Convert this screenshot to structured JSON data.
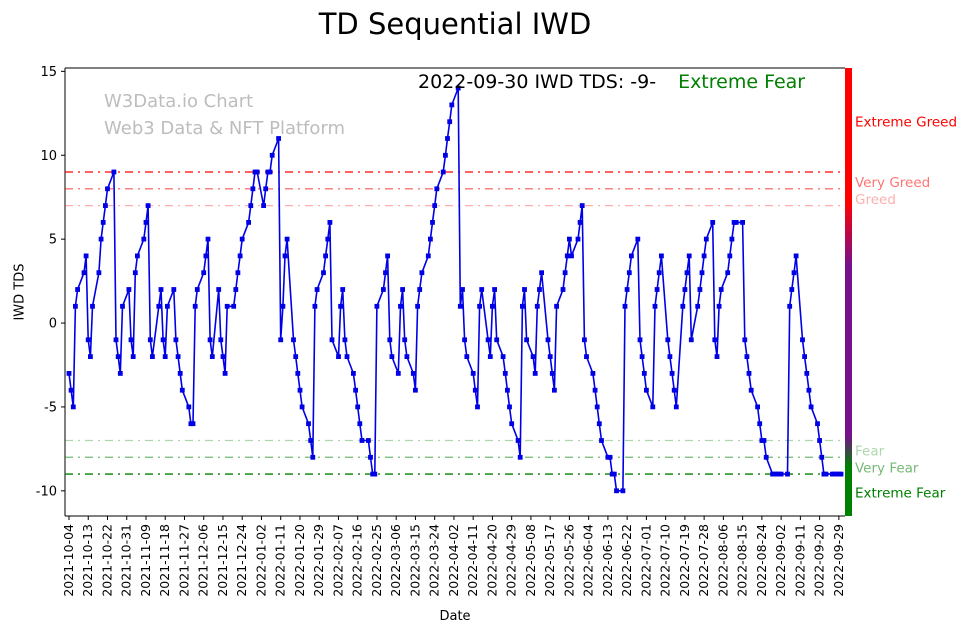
{
  "title": "TD Sequential IWD",
  "annotation": {
    "date_text": "2022-09-30 IWD TDS: -9-",
    "status": "Extreme Fear",
    "status_color": "#008000"
  },
  "watermark": {
    "line1": "W3Data.io Chart",
    "line2": "Web3 Data & NFT Platform"
  },
  "axes": {
    "xlabel": "Date",
    "ylabel": "IWD TDS",
    "yticks": [
      -10,
      -5,
      0,
      5,
      10,
      15
    ]
  },
  "chart_data": {
    "type": "line",
    "title": "TD Sequential IWD",
    "xlabel": "Date",
    "ylabel": "IWD TDS",
    "x_start_date": "2021-10-04",
    "x_end_date": "2022-09-30",
    "x_frequency": "weekdays",
    "ylim": [
      -11.5,
      15.2
    ],
    "grid": false,
    "x_tick_labels": [
      "2021-10-04",
      "2021-10-13",
      "2021-10-22",
      "2021-10-31",
      "2021-11-09",
      "2021-11-18",
      "2021-11-27",
      "2021-12-06",
      "2021-12-15",
      "2021-12-24",
      "2022-01-02",
      "2022-01-11",
      "2022-01-20",
      "2022-01-29",
      "2022-02-07",
      "2022-02-16",
      "2022-02-25",
      "2022-03-06",
      "2022-03-15",
      "2022-03-24",
      "2022-04-02",
      "2022-04-11",
      "2022-04-20",
      "2022-04-29",
      "2022-05-08",
      "2022-05-17",
      "2022-05-26",
      "2022-06-04",
      "2022-06-13",
      "2022-06-22",
      "2022-07-01",
      "2022-07-10",
      "2022-07-19",
      "2022-07-28",
      "2022-08-06",
      "2022-08-15",
      "2022-08-24",
      "2022-09-02",
      "2022-09-11",
      "2022-09-20",
      "2022-09-29"
    ],
    "zones": [
      {
        "value": 9,
        "label": "Extreme Greed",
        "color": "#ff0000",
        "opacity": 1.0,
        "label_at": 12.0
      },
      {
        "value": 8,
        "label": "Very Greed",
        "color": "#ff0000",
        "opacity": 0.55,
        "label_at": 8.4
      },
      {
        "value": 7,
        "label": "Greed",
        "color": "#ff0000",
        "opacity": 0.32,
        "label_at": 7.4
      },
      {
        "value": -7,
        "label": "Fear",
        "color": "#008000",
        "opacity": 0.32,
        "label_at": -7.6
      },
      {
        "value": -8,
        "label": "Very Fear",
        "color": "#008000",
        "opacity": 0.55,
        "label_at": -8.6
      },
      {
        "value": -9,
        "label": "Extreme Fear",
        "color": "#008000",
        "opacity": 1.0,
        "label_at": -10.1
      }
    ],
    "sentiment_bar": {
      "stops": [
        {
          "offset": "0%",
          "color": "#ff0000"
        },
        {
          "offset": "30%",
          "color": "#ff0000"
        },
        {
          "offset": "44%",
          "color": "#76108d"
        },
        {
          "offset": "82%",
          "color": "#76108d"
        },
        {
          "offset": "89%",
          "color": "#008000"
        },
        {
          "offset": "100%",
          "color": "#008000"
        }
      ]
    },
    "series": [
      {
        "name": "IWD TDS",
        "color": "#0000e6",
        "marker": "square",
        "values": [
          -3,
          -4,
          -5,
          1,
          2,
          3,
          4,
          -1,
          -2,
          1,
          3,
          5,
          6,
          7,
          8,
          9,
          -1,
          -2,
          -3,
          1,
          2,
          -1,
          -2,
          3,
          4,
          5,
          6,
          7,
          -1,
          -2,
          1,
          2,
          -1,
          -2,
          1,
          2,
          -1,
          -2,
          -3,
          -4,
          -5,
          -6,
          -6,
          1,
          2,
          3,
          4,
          5,
          -1,
          -2,
          2,
          -1,
          -2,
          -3,
          1,
          1,
          2,
          3,
          4,
          5,
          6,
          7,
          8,
          9,
          9,
          7,
          8,
          9,
          9,
          10,
          11,
          -1,
          1,
          4,
          5,
          -1,
          -2,
          -3,
          -4,
          -5,
          -6,
          -7,
          -8,
          1,
          2,
          3,
          4,
          5,
          6,
          -1,
          -2,
          1,
          2,
          -1,
          -2,
          -3,
          -4,
          -5,
          -6,
          -7,
          -7,
          -8,
          -9,
          -9,
          1,
          2,
          3,
          4,
          -1,
          -2,
          -3,
          1,
          2,
          -1,
          -2,
          -3,
          -4,
          1,
          2,
          3,
          4,
          5,
          6,
          7,
          8,
          9,
          10,
          11,
          12,
          13,
          14,
          1,
          2,
          -1,
          -2,
          -3,
          -4,
          -5,
          1,
          2,
          -1,
          -2,
          1,
          2,
          -1,
          -2,
          -3,
          -4,
          -5,
          -6,
          -7,
          -8,
          1,
          2,
          -1,
          -2,
          -3,
          1,
          2,
          3,
          -1,
          -2,
          -3,
          -4,
          1,
          2,
          3,
          4,
          5,
          4,
          5,
          6,
          7,
          -1,
          -2,
          -3,
          -4,
          -5,
          -6,
          -7,
          -8,
          -8,
          -9,
          -9,
          -10,
          -10,
          1,
          2,
          3,
          4,
          5,
          -1,
          -2,
          -3,
          -4,
          -5,
          1,
          2,
          3,
          4,
          -1,
          -2,
          -3,
          -4,
          -5,
          1,
          2,
          3,
          4,
          -1,
          1,
          2,
          3,
          4,
          5,
          6,
          -1,
          -2,
          1,
          2,
          3,
          4,
          5,
          6,
          6,
          6,
          -1,
          -2,
          -3,
          -4,
          -5,
          -6,
          -7,
          -7,
          -8,
          -9,
          -9,
          -9,
          -9,
          -9,
          -9,
          1,
          2,
          3,
          4,
          -1,
          -2,
          -3,
          -4,
          -5,
          -6,
          -7,
          -8,
          -9,
          -9,
          -9,
          -9,
          -9,
          -9,
          -9
        ]
      }
    ]
  }
}
